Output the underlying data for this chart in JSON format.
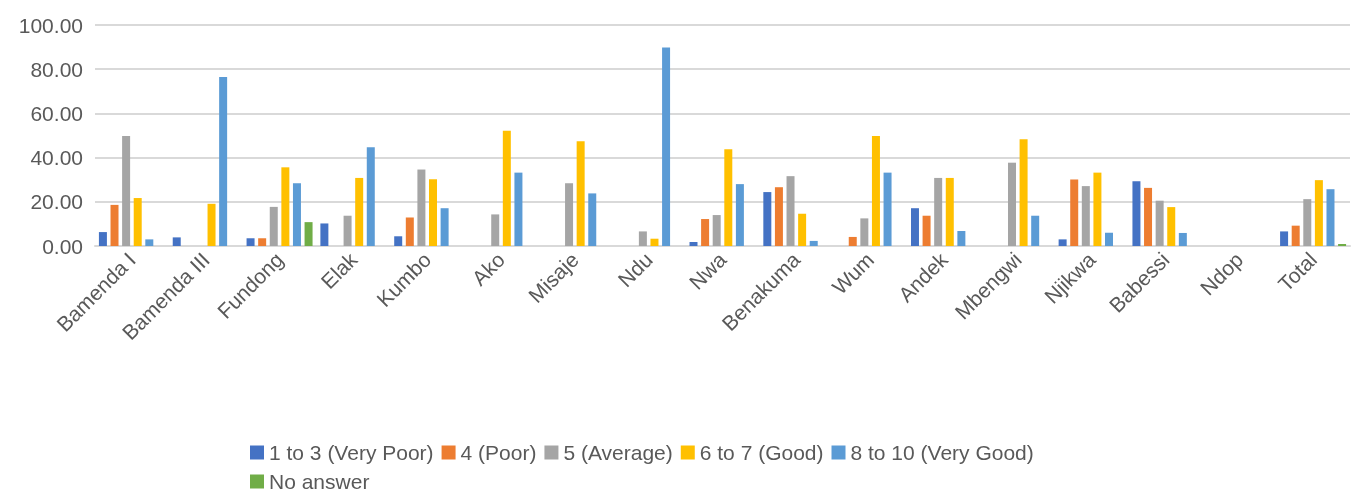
{
  "chart_data": {
    "type": "bar",
    "categories": [
      "Bamenda I",
      "Bamenda III",
      "Fundong",
      "Elak",
      "Kumbo",
      "Ako",
      "Misaje",
      "Ndu",
      "Nwa",
      "Benakuma",
      "Wum",
      "Andek",
      "Mbengwi",
      "Njikwa",
      "Babessi",
      "Ndop",
      "Total"
    ],
    "series": [
      {
        "name": "1 to 3 (Very Poor)",
        "color": "#4472c4",
        "values": [
          6.3,
          3.9,
          3.5,
          10.2,
          4.4,
          0,
          0,
          0,
          1.8,
          24.4,
          0,
          17.1,
          0,
          3.0,
          29.3,
          0,
          6.6
        ]
      },
      {
        "name": "4 (Poor)",
        "color": "#ed7d31",
        "values": [
          18.6,
          0,
          3.5,
          0,
          12.9,
          0,
          0,
          0,
          12.2,
          26.6,
          4.1,
          13.7,
          0,
          30.1,
          26.3,
          0,
          9.2
        ]
      },
      {
        "name": "5 (Average)",
        "color": "#a5a5a5",
        "values": [
          49.8,
          0,
          17.7,
          13.7,
          34.6,
          14.3,
          28.4,
          6.6,
          14.0,
          31.6,
          12.5,
          30.8,
          37.7,
          27.1,
          20.5,
          0,
          21.2
        ]
      },
      {
        "name": "6 to 7 (Good)",
        "color": "#ffc000",
        "values": [
          21.7,
          19.1,
          35.6,
          30.8,
          30.2,
          52.2,
          47.4,
          3.3,
          43.8,
          14.6,
          49.8,
          30.8,
          48.3,
          33.2,
          17.6,
          0,
          29.8
        ]
      },
      {
        "name": "8 to 10 (Very Good)",
        "color": "#5b9bd5",
        "values": [
          3.0,
          76.5,
          28.4,
          44.7,
          17.1,
          33.2,
          23.8,
          89.8,
          28.0,
          2.3,
          33.2,
          6.8,
          13.7,
          6.0,
          5.9,
          0,
          25.7
        ]
      },
      {
        "name": "No answer",
        "color": "#70ad47",
        "values": [
          0,
          0,
          10.8,
          0,
          0,
          0,
          0,
          0,
          0,
          0,
          0,
          0,
          0,
          0,
          0,
          0,
          0.9
        ]
      }
    ],
    "ylim": [
      0,
      100
    ],
    "yticks": [
      {
        "value": 0,
        "label": "0.00"
      },
      {
        "value": 20,
        "label": "20.00"
      },
      {
        "value": 40,
        "label": "40.00"
      },
      {
        "value": 60,
        "label": "60.00"
      },
      {
        "value": 80,
        "label": "80.00"
      },
      {
        "value": 100,
        "label": "100.00"
      }
    ],
    "grid": "y",
    "legend": "bottom"
  }
}
